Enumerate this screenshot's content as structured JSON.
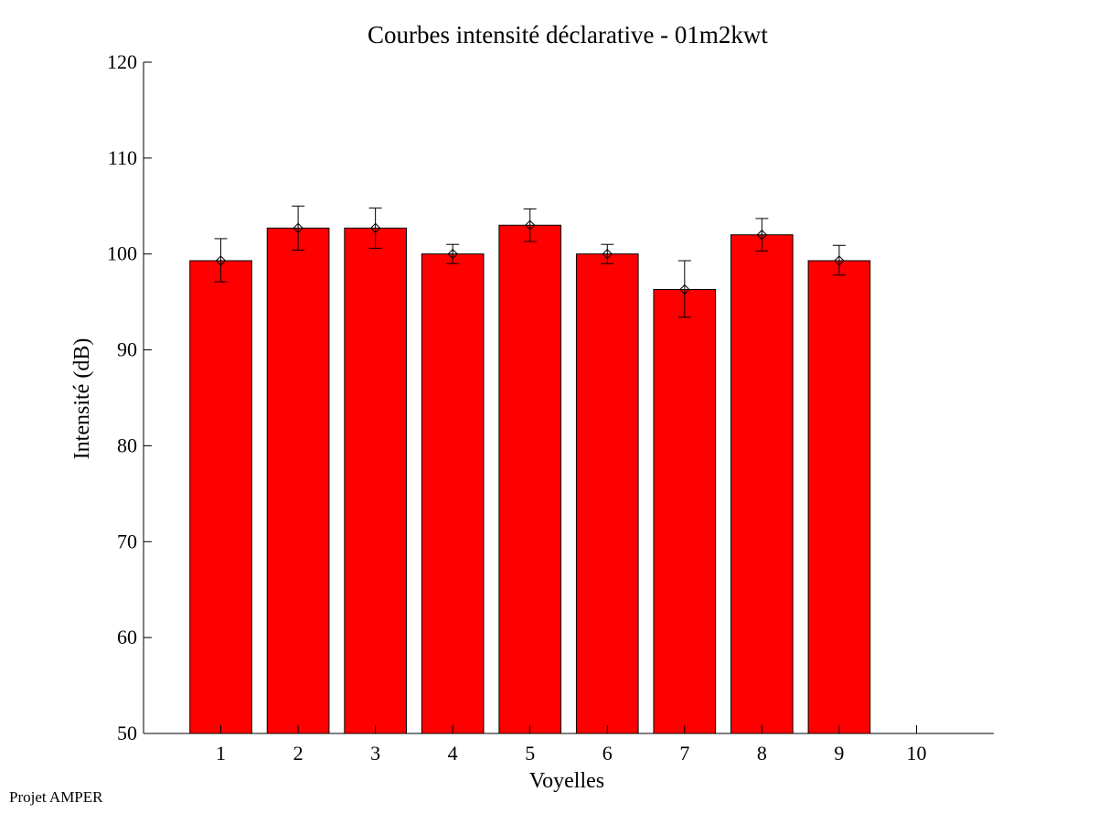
{
  "chart_data": {
    "type": "bar",
    "title": "Courbes intensité déclarative - 01m2kwt",
    "xlabel": "Voyelles",
    "ylabel": "Intensité (dB)",
    "categories": [
      "1",
      "2",
      "3",
      "4",
      "5",
      "6",
      "7",
      "8",
      "9",
      "10"
    ],
    "values": [
      99.3,
      102.7,
      102.7,
      100.0,
      103.0,
      100.0,
      96.3,
      102.0,
      99.3,
      null
    ],
    "error_low": [
      97.1,
      100.4,
      100.6,
      99.0,
      101.3,
      99.0,
      93.4,
      100.3,
      97.8,
      null
    ],
    "error_high": [
      101.6,
      105.0,
      104.8,
      101.0,
      104.7,
      101.0,
      99.3,
      103.7,
      100.9,
      null
    ],
    "xlim": [
      0,
      11
    ],
    "ylim": [
      50,
      120
    ],
    "yticks": [
      50,
      60,
      70,
      80,
      90,
      100,
      110,
      120
    ],
    "grid": false,
    "bar_color": "#ff0000",
    "bar_edge_color": "#000000",
    "marker": "diamond"
  },
  "footer": {
    "credit": "Projet AMPER"
  }
}
